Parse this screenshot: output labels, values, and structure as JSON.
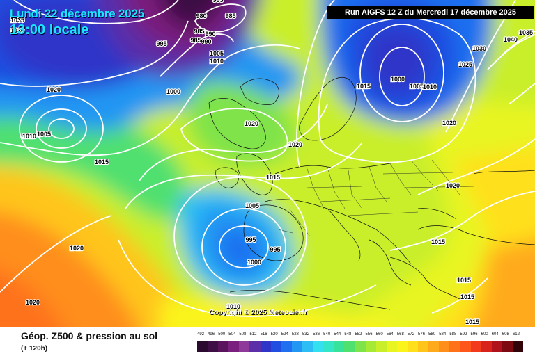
{
  "header": {
    "date_line": "Lundi 22 décembre 2025",
    "time_line": "13:00 locale",
    "run_info": "Run AIGFS 12 Z du Mercredi 17 décembre 2025"
  },
  "footer": {
    "title": "Géop. Z500 & pression au sol",
    "subtitle": "(+ 120h)"
  },
  "copyright": "Copyright © 2025 Meteociel.fr",
  "pressure_labels": [
    {
      "text": "985"
    },
    {
      "text": "980"
    },
    {
      "text": "985"
    },
    {
      "text": "985"
    },
    {
      "text": "990"
    },
    {
      "text": "985"
    },
    {
      "text": "990"
    },
    {
      "text": "995"
    },
    {
      "text": "1005"
    },
    {
      "text": "1010"
    },
    {
      "text": "1000"
    },
    {
      "text": "1035"
    },
    {
      "text": "1030"
    },
    {
      "text": "1020"
    },
    {
      "text": "1005"
    },
    {
      "text": "1010"
    },
    {
      "text": "1015"
    },
    {
      "text": "1020"
    },
    {
      "text": "1020"
    },
    {
      "text": "1015"
    },
    {
      "text": "1005"
    },
    {
      "text": "995"
    },
    {
      "text": "995"
    },
    {
      "text": "1000"
    },
    {
      "text": "1020"
    },
    {
      "text": "1020"
    },
    {
      "text": "1010"
    },
    {
      "text": "1000"
    },
    {
      "text": "1005"
    },
    {
      "text": "1010"
    },
    {
      "text": "1015"
    },
    {
      "text": "1030"
    },
    {
      "text": "1035"
    },
    {
      "text": "1040"
    },
    {
      "text": "1025"
    },
    {
      "text": "1020"
    },
    {
      "text": "1020"
    },
    {
      "text": "1015"
    },
    {
      "text": "1015"
    },
    {
      "text": "1015"
    },
    {
      "text": "1015"
    }
  ],
  "legend": {
    "values": [
      "492",
      "496",
      "500",
      "504",
      "508",
      "512",
      "516",
      "520",
      "524",
      "528",
      "532",
      "536",
      "540",
      "544",
      "548",
      "552",
      "556",
      "560",
      "564",
      "568",
      "572",
      "576",
      "580",
      "584",
      "588",
      "592",
      "596",
      "600",
      "604",
      "608",
      "612"
    ],
    "colors": [
      "#2a0a2e",
      "#3d0f45",
      "#5a145e",
      "#7a1f7d",
      "#8e3a9a",
      "#5a2fa8",
      "#2f35c8",
      "#1f4ee0",
      "#1f6ff0",
      "#2196f3",
      "#2cbdf5",
      "#33e0f0",
      "#33e6c8",
      "#37e29a",
      "#4fe070",
      "#7fe34a",
      "#a6ea35",
      "#c9ef2a",
      "#e8f520",
      "#fbf41c",
      "#ffe01a",
      "#ffc51a",
      "#ffaa1a",
      "#ff8e1a",
      "#ff721a",
      "#ff561c",
      "#f23a1c",
      "#d8231c",
      "#b0121c",
      "#7d0a12",
      "#300408"
    ]
  }
}
